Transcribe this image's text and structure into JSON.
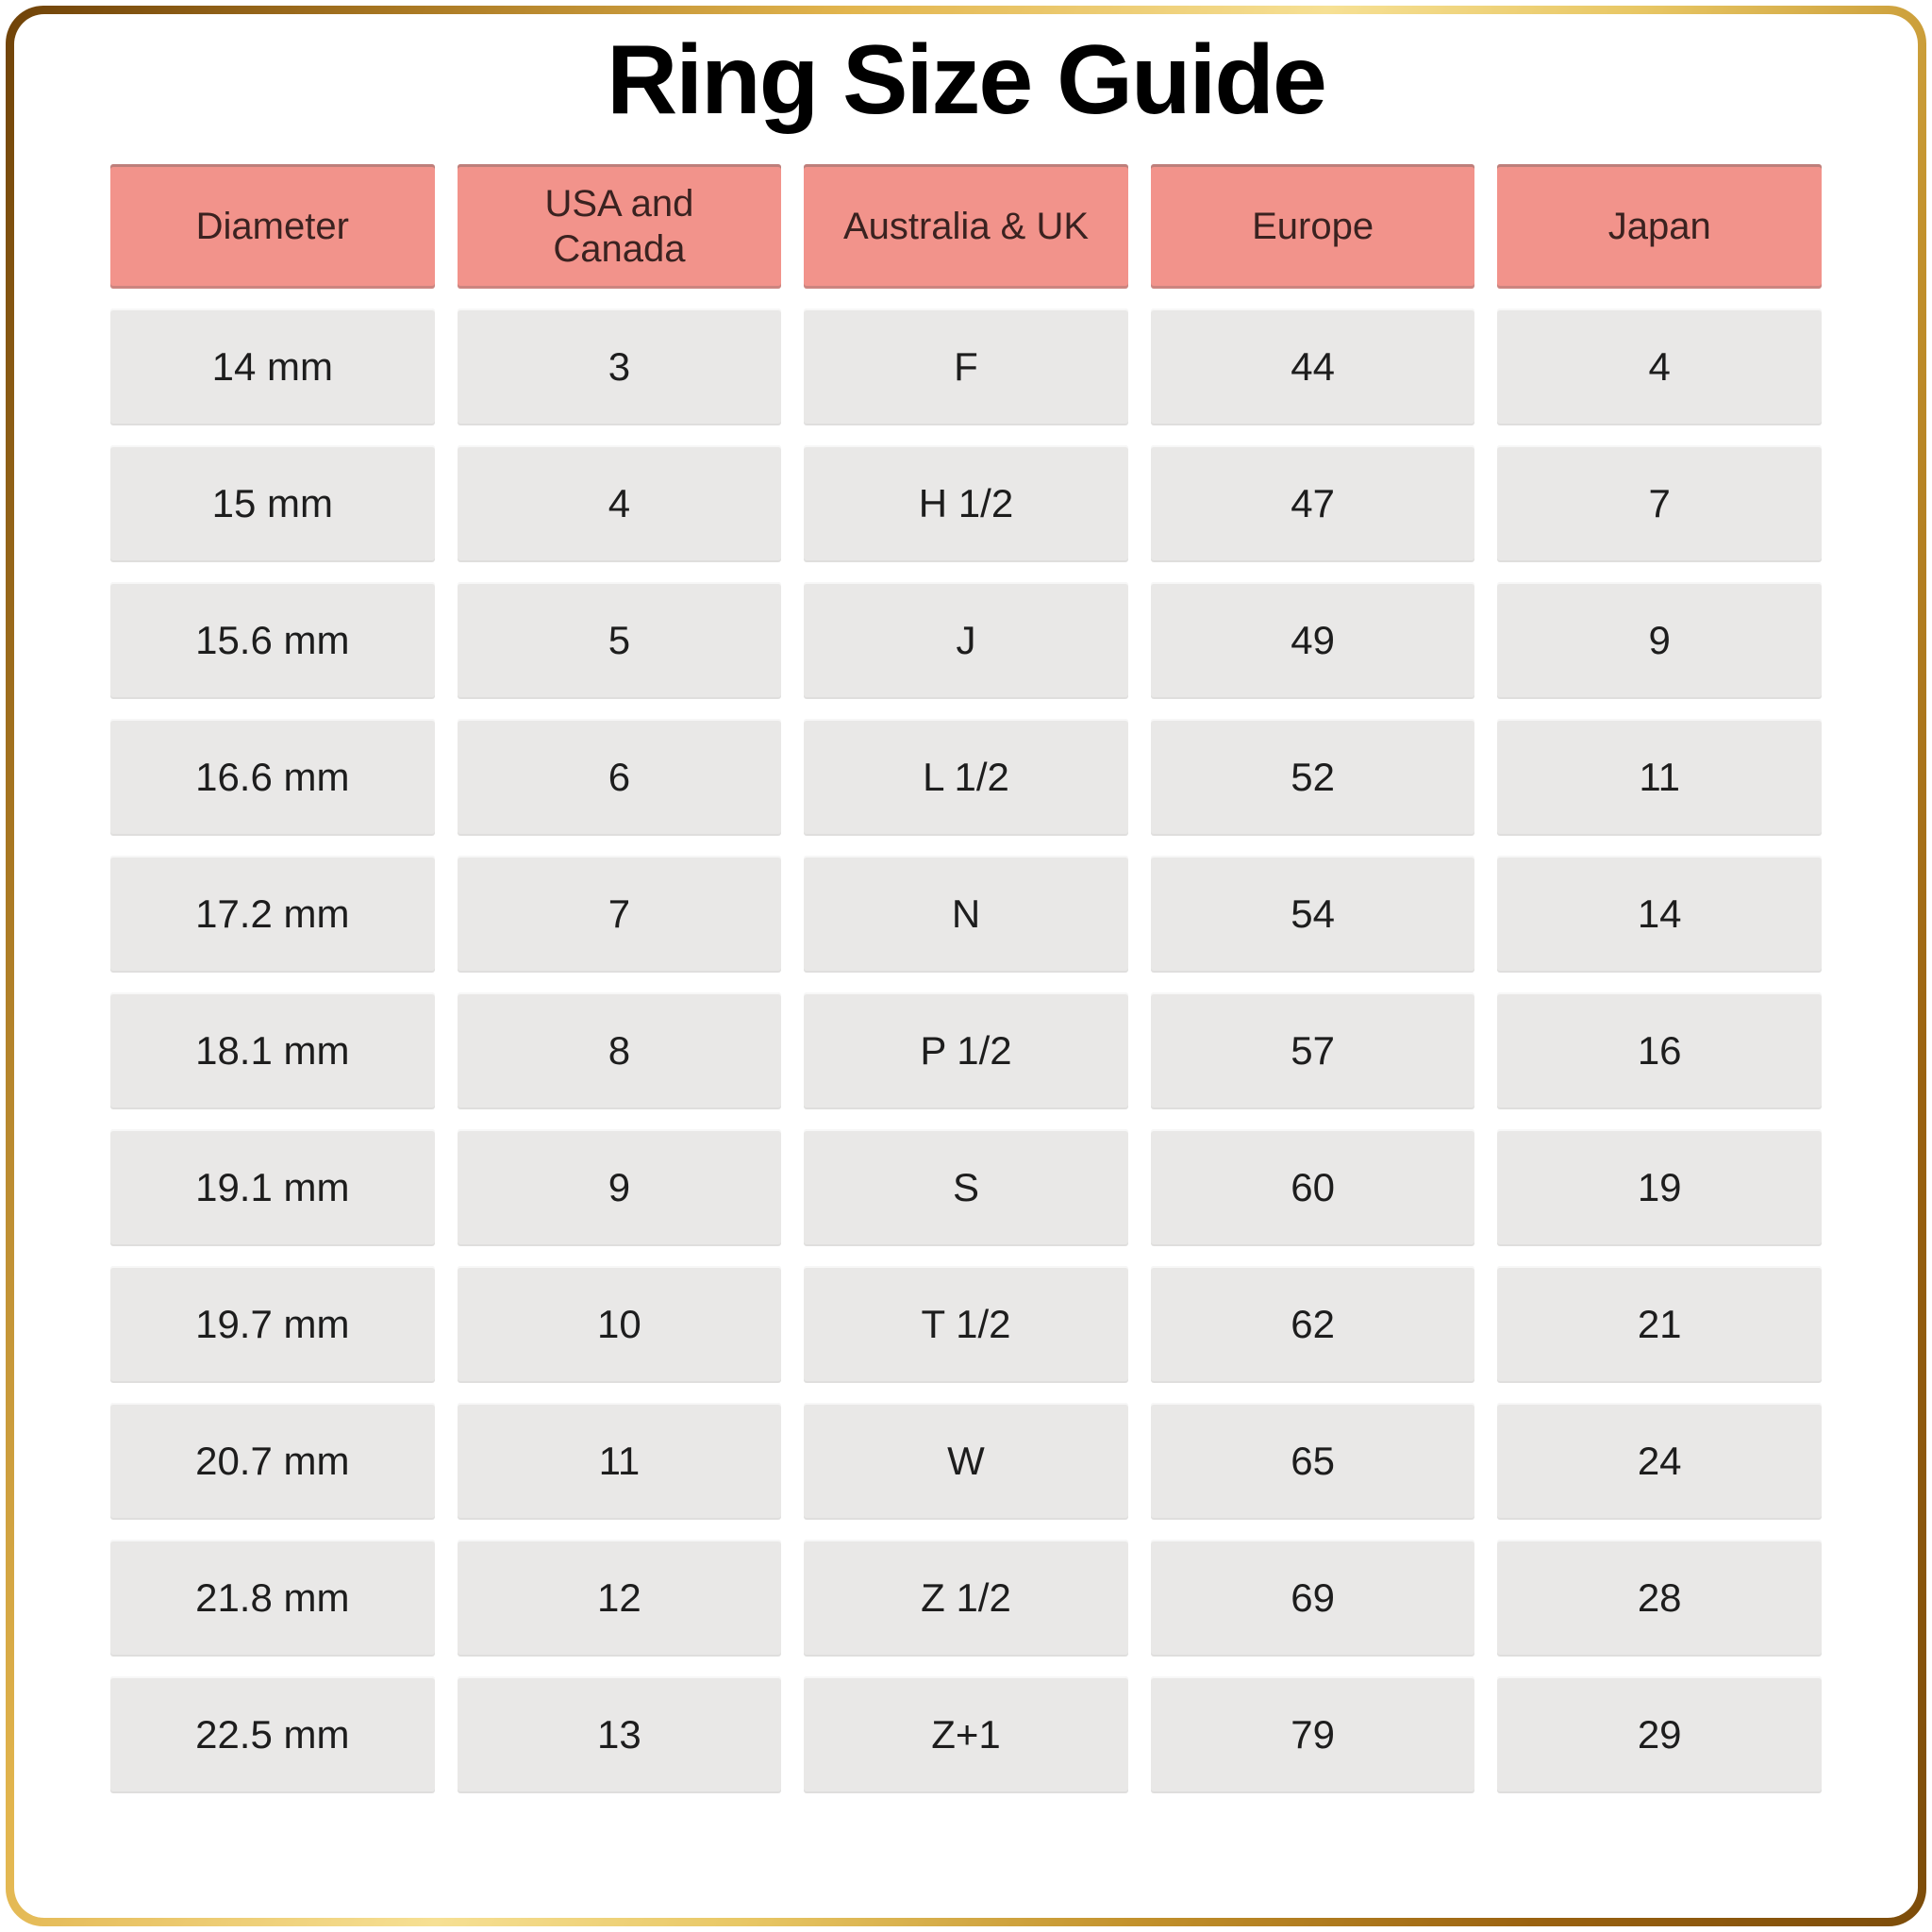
{
  "title": "Ring Size Guide",
  "chart_data": {
    "type": "table",
    "title": "Ring Size Guide",
    "columns": [
      "Diameter",
      "USA and Canada",
      "Australia & UK",
      "Europe",
      "Japan"
    ],
    "rows": [
      [
        "14 mm",
        "3",
        "F",
        "44",
        "4"
      ],
      [
        "15 mm",
        "4",
        "H 1/2",
        "47",
        "7"
      ],
      [
        "15.6 mm",
        "5",
        "J",
        "49",
        "9"
      ],
      [
        "16.6 mm",
        "6",
        "L 1/2",
        "52",
        "11"
      ],
      [
        "17.2 mm",
        "7",
        "N",
        "54",
        "14"
      ],
      [
        "18.1 mm",
        "8",
        "P 1/2",
        "57",
        "16"
      ],
      [
        "19.1 mm",
        "9",
        "S",
        "60",
        "19"
      ],
      [
        "19.7 mm",
        "10",
        "T 1/2",
        "62",
        "21"
      ],
      [
        "20.7 mm",
        "11",
        "W",
        "65",
        "24"
      ],
      [
        "21.8 mm",
        "12",
        "Z 1/2",
        "69",
        "28"
      ],
      [
        "22.5 mm",
        "13",
        "Z+1",
        "79",
        "29"
      ]
    ]
  },
  "colors": {
    "header_bg": "#f2938b",
    "header_text": "#3a2220",
    "cell_bg": "#e9e8e7",
    "cell_text": "#1d1d1d",
    "frame_gold_dark": "#7c4c0a",
    "frame_gold_light": "#f6e094",
    "title_text": "#000000"
  }
}
